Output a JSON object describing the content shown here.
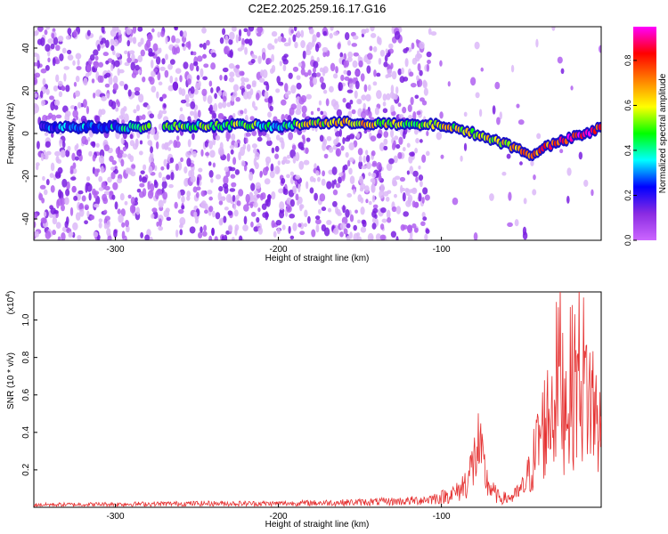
{
  "title": "C2E2.2025.259.16.17.G16",
  "colors": {
    "snr_line": "#e53030",
    "colorbar_stops": [
      "#cc66ff",
      "#8a2be2",
      "#0000ff",
      "#00ffff",
      "#00ff00",
      "#ffff00",
      "#ff8000",
      "#ff0000",
      "#ff00ff"
    ]
  },
  "chart_data": [
    {
      "type": "heatmap",
      "title": "C2E2.2025.259.16.17.G16",
      "xlabel": "Height of straight line (km)",
      "ylabel": "Frequency (Hz)",
      "xlim": [
        -350,
        -2
      ],
      "ylim": [
        -50,
        50
      ],
      "x_ticks": [
        -300,
        -200,
        -100
      ],
      "y_ticks": [
        40,
        20,
        0,
        -20,
        -40
      ],
      "colorbar": {
        "label": "Normalized spectral amplitude",
        "range": [
          0.0,
          0.95
        ],
        "ticks": [
          0.0,
          0.2,
          0.4,
          0.6,
          0.8
        ]
      },
      "ridge": {
        "description_points_x": [
          -345,
          -300,
          -280,
          -220,
          -200,
          -180,
          -150,
          -120,
          -100,
          -80,
          -60,
          -45,
          -35,
          -20,
          -10,
          -2
        ],
        "description_points_y": [
          3,
          3,
          3,
          4,
          3,
          5,
          5,
          4,
          4,
          0,
          -5,
          -10,
          -6,
          -2,
          0,
          3
        ],
        "amplitude": [
          0.2,
          0.25,
          0.4,
          0.45,
          0.3,
          0.55,
          0.6,
          0.45,
          0.55,
          0.5,
          0.6,
          0.7,
          0.75,
          0.85,
          0.9,
          0.75
        ]
      }
    },
    {
      "type": "line",
      "xlabel": "Height of straight line (km)",
      "ylabel": "SNR (10 * v/v)",
      "ylabel_multiplier": "(x10",
      "ylabel_multiplier_exp": "4",
      "ylabel_multiplier_close": ")",
      "xlim": [
        -350,
        -2
      ],
      "ylim": [
        0,
        1.15
      ],
      "x_ticks": [
        -300,
        -200,
        -100
      ],
      "y_ticks": [
        0.2,
        0.4,
        0.6,
        0.8,
        1.0
      ],
      "y_tick_labels": [
        "0.2",
        "0.4",
        "0.6",
        "0.8",
        "1.0"
      ],
      "series": [
        {
          "x": [
            -350,
            -300,
            -250,
            -200,
            -150,
            -120,
            -110,
            -100,
            -90,
            -85,
            -80,
            -78,
            -76,
            -72,
            -68,
            -65,
            -60,
            -55,
            -50,
            -45,
            -40,
            -35,
            -30,
            -28,
            -25,
            -20,
            -15,
            -10,
            -5,
            -2
          ],
          "y": [
            0.02,
            0.025,
            0.03,
            0.03,
            0.04,
            0.05,
            0.06,
            0.08,
            0.12,
            0.2,
            0.35,
            0.5,
            0.4,
            0.2,
            0.12,
            0.08,
            0.07,
            0.09,
            0.15,
            0.3,
            0.55,
            0.7,
            0.9,
            1.15,
            0.85,
            0.95,
            1.1,
            0.9,
            0.75,
            0.55
          ]
        }
      ]
    }
  ]
}
